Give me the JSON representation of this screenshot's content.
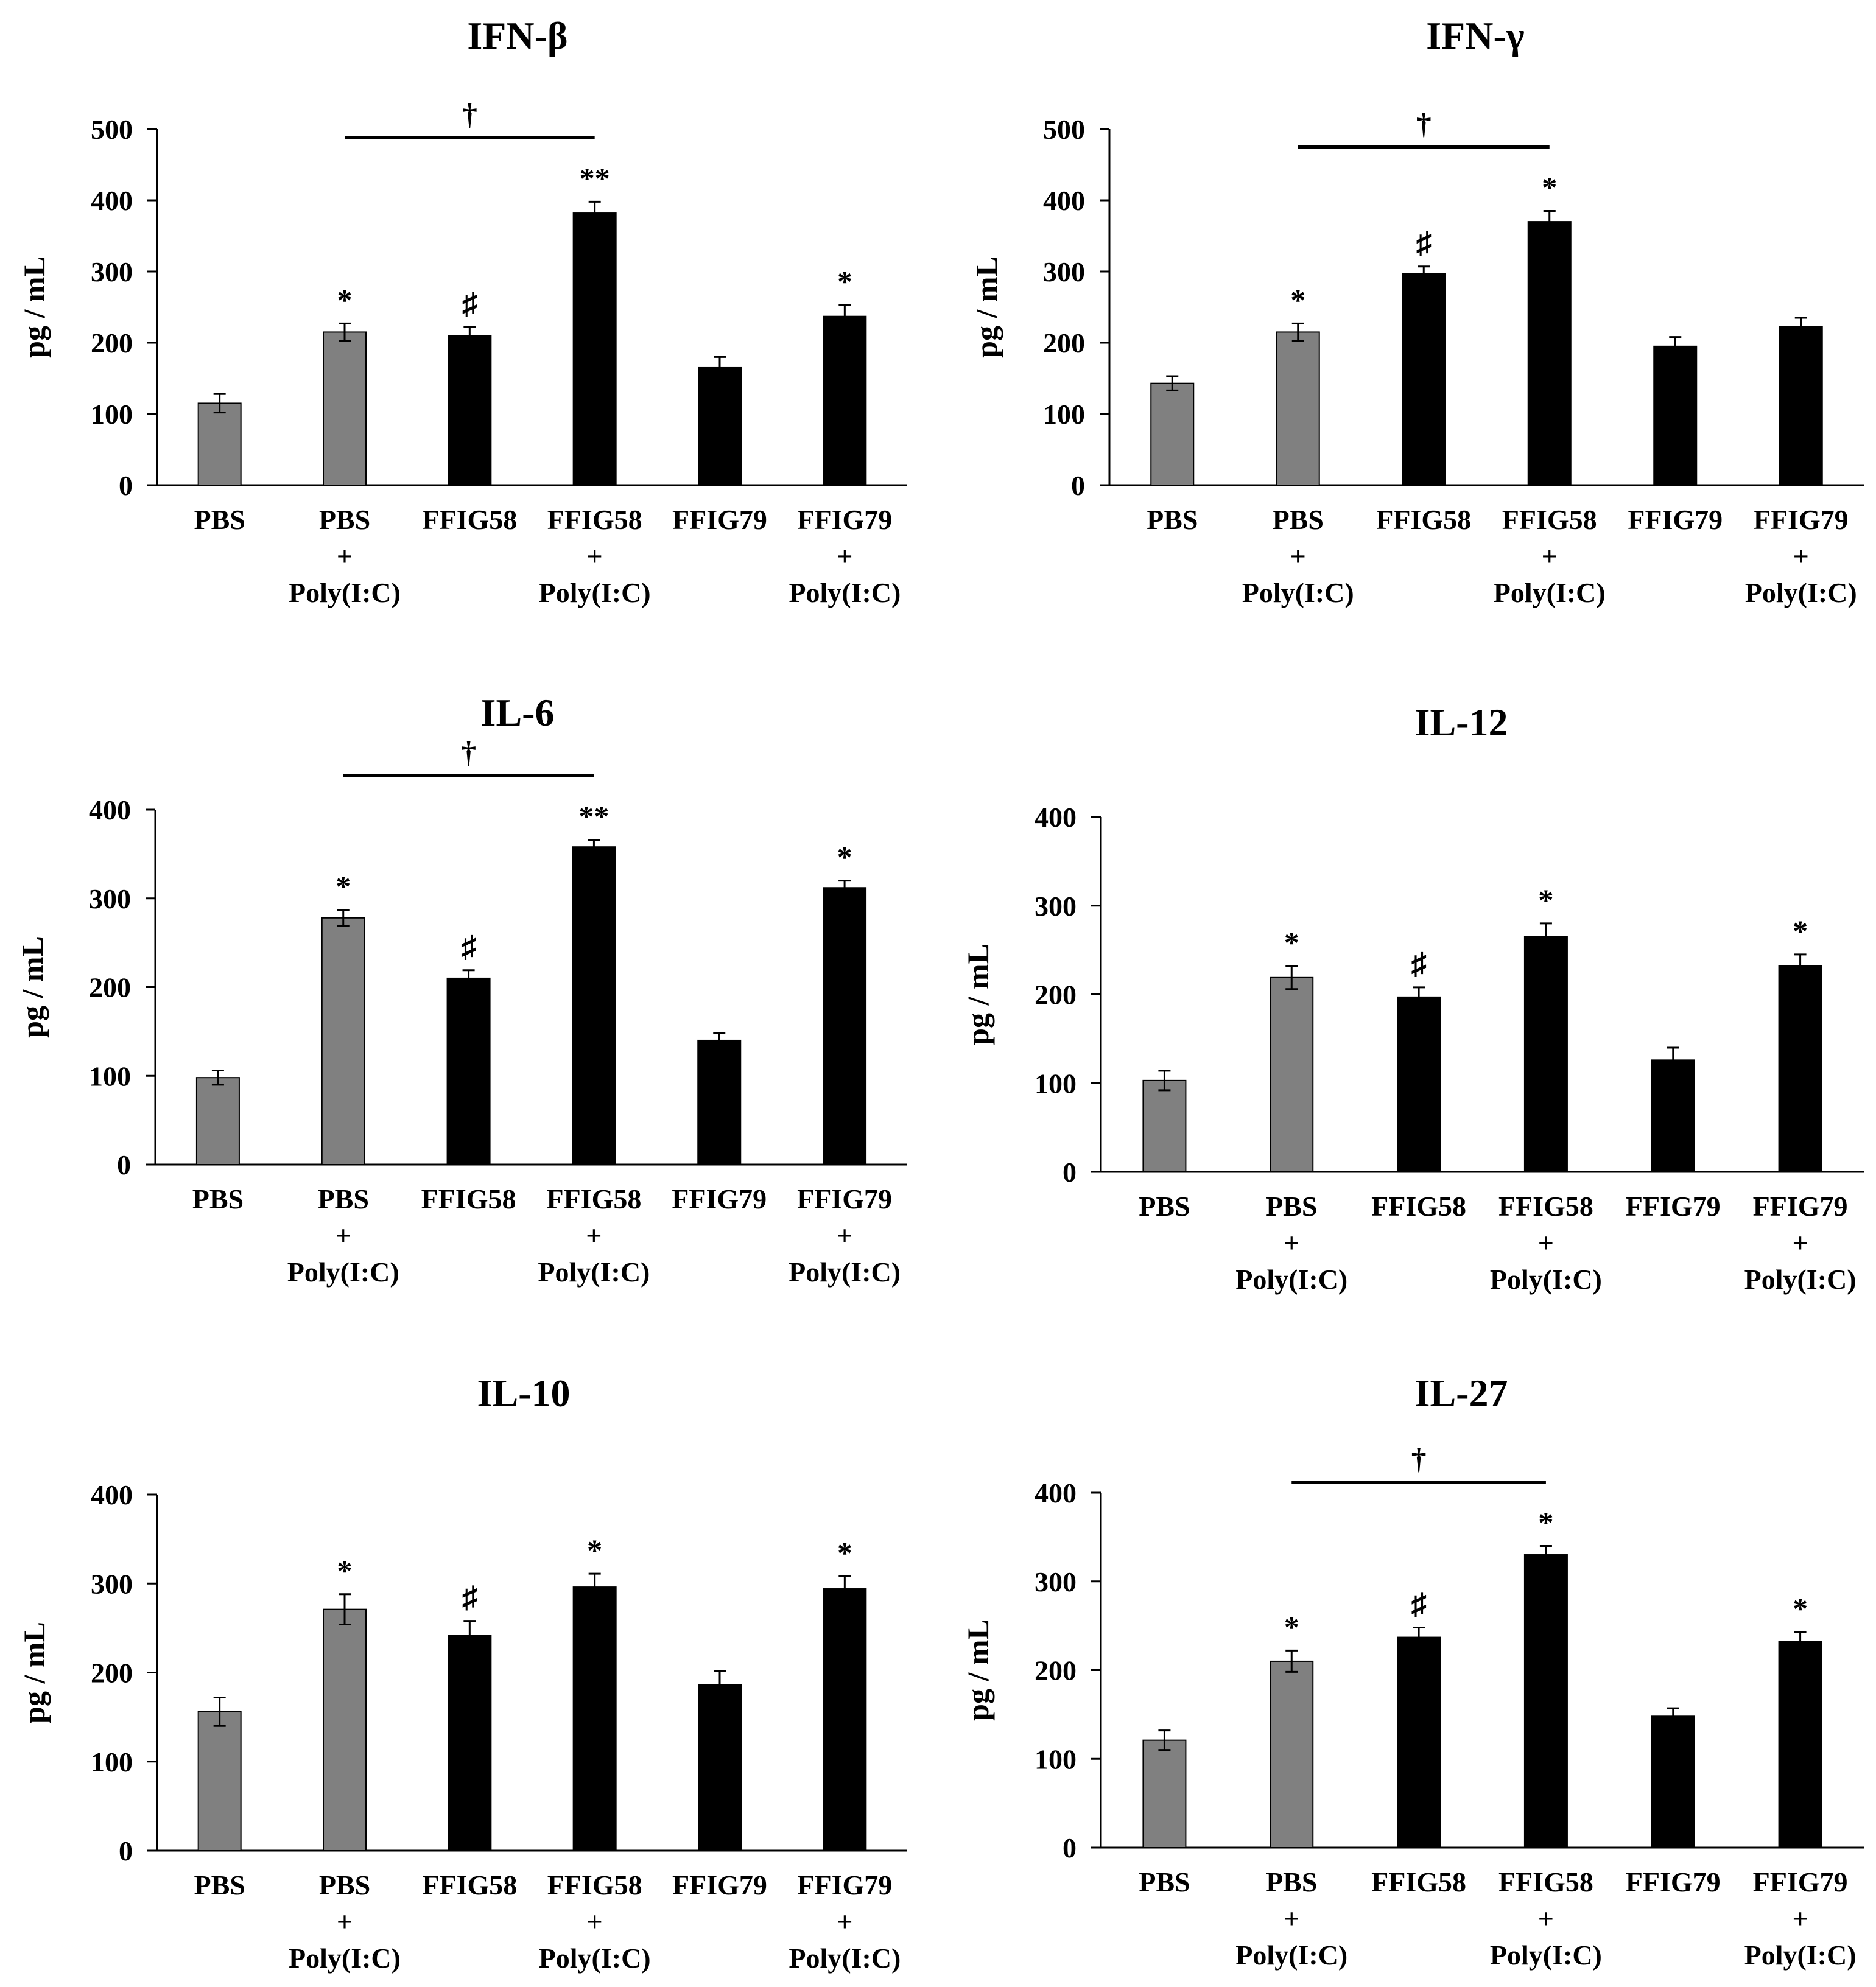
{
  "figure": {
    "background": "#ffffff"
  },
  "style": {
    "gray_bar": "#808080",
    "black_bar": "#000000",
    "axis": "#000000"
  },
  "chart_data": [
    {
      "type": "bar",
      "title": "IFN-β",
      "ylabel": "pg / mL",
      "xlabel": "",
      "ylim": [
        0,
        500
      ],
      "yticks": [
        0,
        100,
        200,
        300,
        400,
        500
      ],
      "categories": [
        {
          "lines": [
            "PBS"
          ]
        },
        {
          "lines": [
            "PBS",
            "+",
            "Poly(I:C)"
          ]
        },
        {
          "lines": [
            "FFIG58"
          ]
        },
        {
          "lines": [
            "FFIG58",
            "+",
            "Poly(I:C)"
          ]
        },
        {
          "lines": [
            "FFIG79"
          ]
        },
        {
          "lines": [
            "FFIG79",
            "+",
            "Poly(I:C)"
          ]
        }
      ],
      "values": [
        115,
        215,
        210,
        382,
        165,
        237
      ],
      "errors": [
        13,
        12,
        12,
        16,
        15,
        16
      ],
      "bar_colors": [
        "gray",
        "gray",
        "black",
        "black",
        "black",
        "black"
      ],
      "annotations": [
        "",
        "*",
        "♯",
        "**",
        "",
        "*"
      ],
      "bracket": {
        "from": 1,
        "to": 3,
        "label": "†"
      }
    },
    {
      "type": "bar",
      "title": "IFN-γ",
      "ylabel": "pg / mL",
      "xlabel": "",
      "ylim": [
        0,
        500
      ],
      "yticks": [
        0,
        100,
        200,
        300,
        400,
        500
      ],
      "categories": [
        {
          "lines": [
            "PBS"
          ]
        },
        {
          "lines": [
            "PBS",
            "+",
            "Poly(I:C)"
          ]
        },
        {
          "lines": [
            "FFIG58"
          ]
        },
        {
          "lines": [
            "FFIG58",
            "+",
            "Poly(I:C)"
          ]
        },
        {
          "lines": [
            "FFIG79"
          ]
        },
        {
          "lines": [
            "FFIG79",
            "+",
            "Poly(I:C)"
          ]
        }
      ],
      "values": [
        143,
        215,
        297,
        370,
        195,
        223
      ],
      "errors": [
        10,
        12,
        10,
        15,
        13,
        12
      ],
      "bar_colors": [
        "gray",
        "gray",
        "black",
        "black",
        "black",
        "black"
      ],
      "annotations": [
        "",
        "*",
        "♯",
        "*",
        "",
        ""
      ],
      "bracket": {
        "from": 1,
        "to": 3,
        "label": "†"
      }
    },
    {
      "type": "bar",
      "title": "IL-6",
      "ylabel": "pg / mL",
      "xlabel": "",
      "ylim": [
        0,
        400
      ],
      "yticks": [
        0,
        100,
        200,
        300,
        400
      ],
      "categories": [
        {
          "lines": [
            "PBS"
          ]
        },
        {
          "lines": [
            "PBS",
            "+",
            "Poly(I:C)"
          ]
        },
        {
          "lines": [
            "FFIG58"
          ]
        },
        {
          "lines": [
            "FFIG58",
            "+",
            "Poly(I:C)"
          ]
        },
        {
          "lines": [
            "FFIG79"
          ]
        },
        {
          "lines": [
            "FFIG79",
            "+",
            "Poly(I:C)"
          ]
        }
      ],
      "values": [
        98,
        278,
        210,
        358,
        140,
        312
      ],
      "errors": [
        8,
        9,
        9,
        8,
        8,
        8
      ],
      "bar_colors": [
        "gray",
        "gray",
        "black",
        "black",
        "black",
        "black"
      ],
      "annotations": [
        "",
        "*",
        "♯",
        "**",
        "",
        "*"
      ],
      "bracket": {
        "from": 1,
        "to": 3,
        "label": "†"
      }
    },
    {
      "type": "bar",
      "title": "IL-12",
      "ylabel": "pg / mL",
      "xlabel": "",
      "ylim": [
        0,
        400
      ],
      "yticks": [
        0,
        100,
        200,
        300,
        400
      ],
      "categories": [
        {
          "lines": [
            "PBS"
          ]
        },
        {
          "lines": [
            "PBS",
            "+",
            "Poly(I:C)"
          ]
        },
        {
          "lines": [
            "FFIG58"
          ]
        },
        {
          "lines": [
            "FFIG58",
            "+",
            "Poly(I:C)"
          ]
        },
        {
          "lines": [
            "FFIG79"
          ]
        },
        {
          "lines": [
            "FFIG79",
            "+",
            "Poly(I:C)"
          ]
        }
      ],
      "values": [
        103,
        219,
        197,
        265,
        126,
        232
      ],
      "errors": [
        11,
        13,
        11,
        15,
        14,
        13
      ],
      "bar_colors": [
        "gray",
        "gray",
        "black",
        "black",
        "black",
        "black"
      ],
      "annotations": [
        "",
        "*",
        "♯",
        "*",
        "",
        "*"
      ],
      "bracket": null
    },
    {
      "type": "bar",
      "title": "IL-10",
      "ylabel": "pg / mL",
      "xlabel": "",
      "ylim": [
        0,
        400
      ],
      "yticks": [
        0,
        100,
        200,
        300,
        400
      ],
      "categories": [
        {
          "lines": [
            "PBS"
          ]
        },
        {
          "lines": [
            "PBS",
            "+",
            "Poly(I:C)"
          ]
        },
        {
          "lines": [
            "FFIG58"
          ]
        },
        {
          "lines": [
            "FFIG58",
            "+",
            "Poly(I:C)"
          ]
        },
        {
          "lines": [
            "FFIG79"
          ]
        },
        {
          "lines": [
            "FFIG79",
            "+",
            "Poly(I:C)"
          ]
        }
      ],
      "values": [
        156,
        271,
        242,
        296,
        186,
        294
      ],
      "errors": [
        16,
        17,
        16,
        15,
        16,
        14
      ],
      "bar_colors": [
        "gray",
        "gray",
        "black",
        "black",
        "black",
        "black"
      ],
      "annotations": [
        "",
        "*",
        "♯",
        "*",
        "",
        "*"
      ],
      "bracket": null
    },
    {
      "type": "bar",
      "title": "IL-27",
      "ylabel": "pg / mL",
      "xlabel": "",
      "ylim": [
        0,
        400
      ],
      "yticks": [
        0,
        100,
        200,
        300,
        400
      ],
      "categories": [
        {
          "lines": [
            "PBS"
          ]
        },
        {
          "lines": [
            "PBS",
            "+",
            "Poly(I:C)"
          ]
        },
        {
          "lines": [
            "FFIG58"
          ]
        },
        {
          "lines": [
            "FFIG58",
            "+",
            "Poly(I:C)"
          ]
        },
        {
          "lines": [
            "FFIG79"
          ]
        },
        {
          "lines": [
            "FFIG79",
            "+",
            "Poly(I:C)"
          ]
        }
      ],
      "values": [
        121,
        210,
        237,
        330,
        148,
        232
      ],
      "errors": [
        11,
        12,
        11,
        10,
        9,
        11
      ],
      "bar_colors": [
        "gray",
        "gray",
        "black",
        "black",
        "black",
        "black"
      ],
      "annotations": [
        "",
        "*",
        "♯",
        "*",
        "",
        "*"
      ],
      "bracket": {
        "from": 1,
        "to": 3,
        "label": "†"
      }
    }
  ]
}
